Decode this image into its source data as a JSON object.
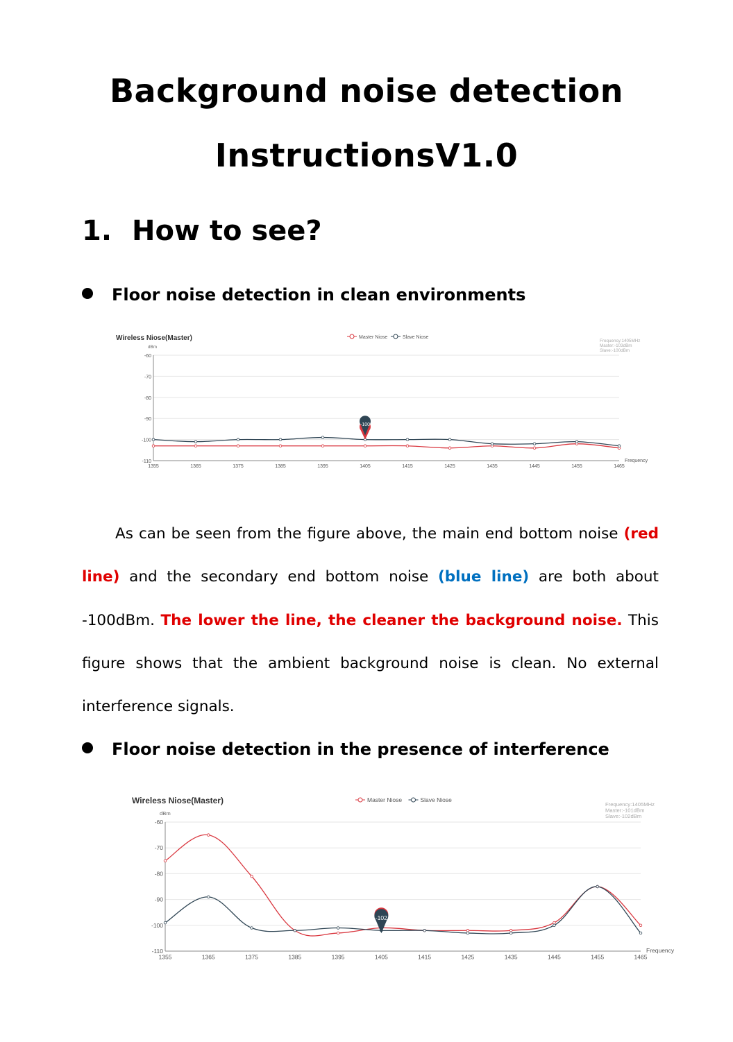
{
  "document": {
    "title_line1": "Background noise detection",
    "title_line2": "InstructionsV1.0",
    "section_number": "1.",
    "section_title": "How to see?",
    "bullet1": "Floor noise detection in clean environments",
    "bullet2": "Floor noise detection in the presence of interference",
    "paragraph": {
      "p1": "As can be seen from the figure above, the main end bottom noise ",
      "red1": "(red line)",
      "p2": " and the secondary end bottom noise ",
      "blue1": "(blue line)",
      "p3": " are both about -100dBm. ",
      "red2": "The lower the line, the cleaner the background noise.",
      "p4": " This figure shows that the ambient background noise is clean. No external interference signals."
    }
  },
  "colors": {
    "master": "#d9363e",
    "slave": "#2f4554",
    "grid": "#e6e6e6",
    "info": "#aaaaaa"
  },
  "chart_data": [
    {
      "type": "line",
      "title": "Wireless Niose(Master)",
      "ylabel": "dBm",
      "xlabel": "Frequency",
      "ylim": [
        -110,
        -60
      ],
      "yticks": [
        -60,
        -70,
        -80,
        -90,
        -100,
        -110
      ],
      "grid": true,
      "legend": "top-center",
      "x": [
        1355,
        1365,
        1375,
        1385,
        1395,
        1405,
        1415,
        1425,
        1435,
        1445,
        1455,
        1465
      ],
      "series": [
        {
          "name": "Master Niose",
          "values": [
            -103,
            -103,
            -103,
            -103,
            -103,
            -103,
            -103,
            -104,
            -103,
            -104,
            -102,
            -104
          ]
        },
        {
          "name": "Slave Niose",
          "values": [
            -100,
            -101,
            -100,
            -100,
            -99,
            -100,
            -100,
            -100,
            -102,
            -102,
            -101,
            -103
          ]
        }
      ],
      "info": [
        "Frequency:1405MHz",
        "Master:-103dBm",
        "Slave:-100dBm"
      ],
      "marker": {
        "x": 1405,
        "label": "-100"
      }
    },
    {
      "type": "line",
      "title": "Wireless Niose(Master)",
      "ylabel": "dBm",
      "xlabel": "Frequency",
      "ylim": [
        -110,
        -60
      ],
      "yticks": [
        -60,
        -70,
        -80,
        -90,
        -100,
        -110
      ],
      "grid": true,
      "legend": "top-center",
      "x": [
        1355,
        1365,
        1375,
        1385,
        1395,
        1405,
        1415,
        1425,
        1435,
        1445,
        1455,
        1465
      ],
      "series": [
        {
          "name": "Master Niose",
          "values": [
            -75,
            -65,
            -81,
            -102,
            -103,
            -101,
            -102,
            -102,
            -102,
            -99,
            -85,
            -100
          ]
        },
        {
          "name": "Slave Niose",
          "values": [
            -99,
            -89,
            -101,
            -102,
            -101,
            -102,
            -102,
            -103,
            -103,
            -100,
            -85,
            -103
          ]
        }
      ],
      "info": [
        "Frequency:1405MHz",
        "Master:-101dBm",
        "Slave:-102dBm"
      ],
      "marker": {
        "x": 1405,
        "label": "-102"
      }
    }
  ]
}
